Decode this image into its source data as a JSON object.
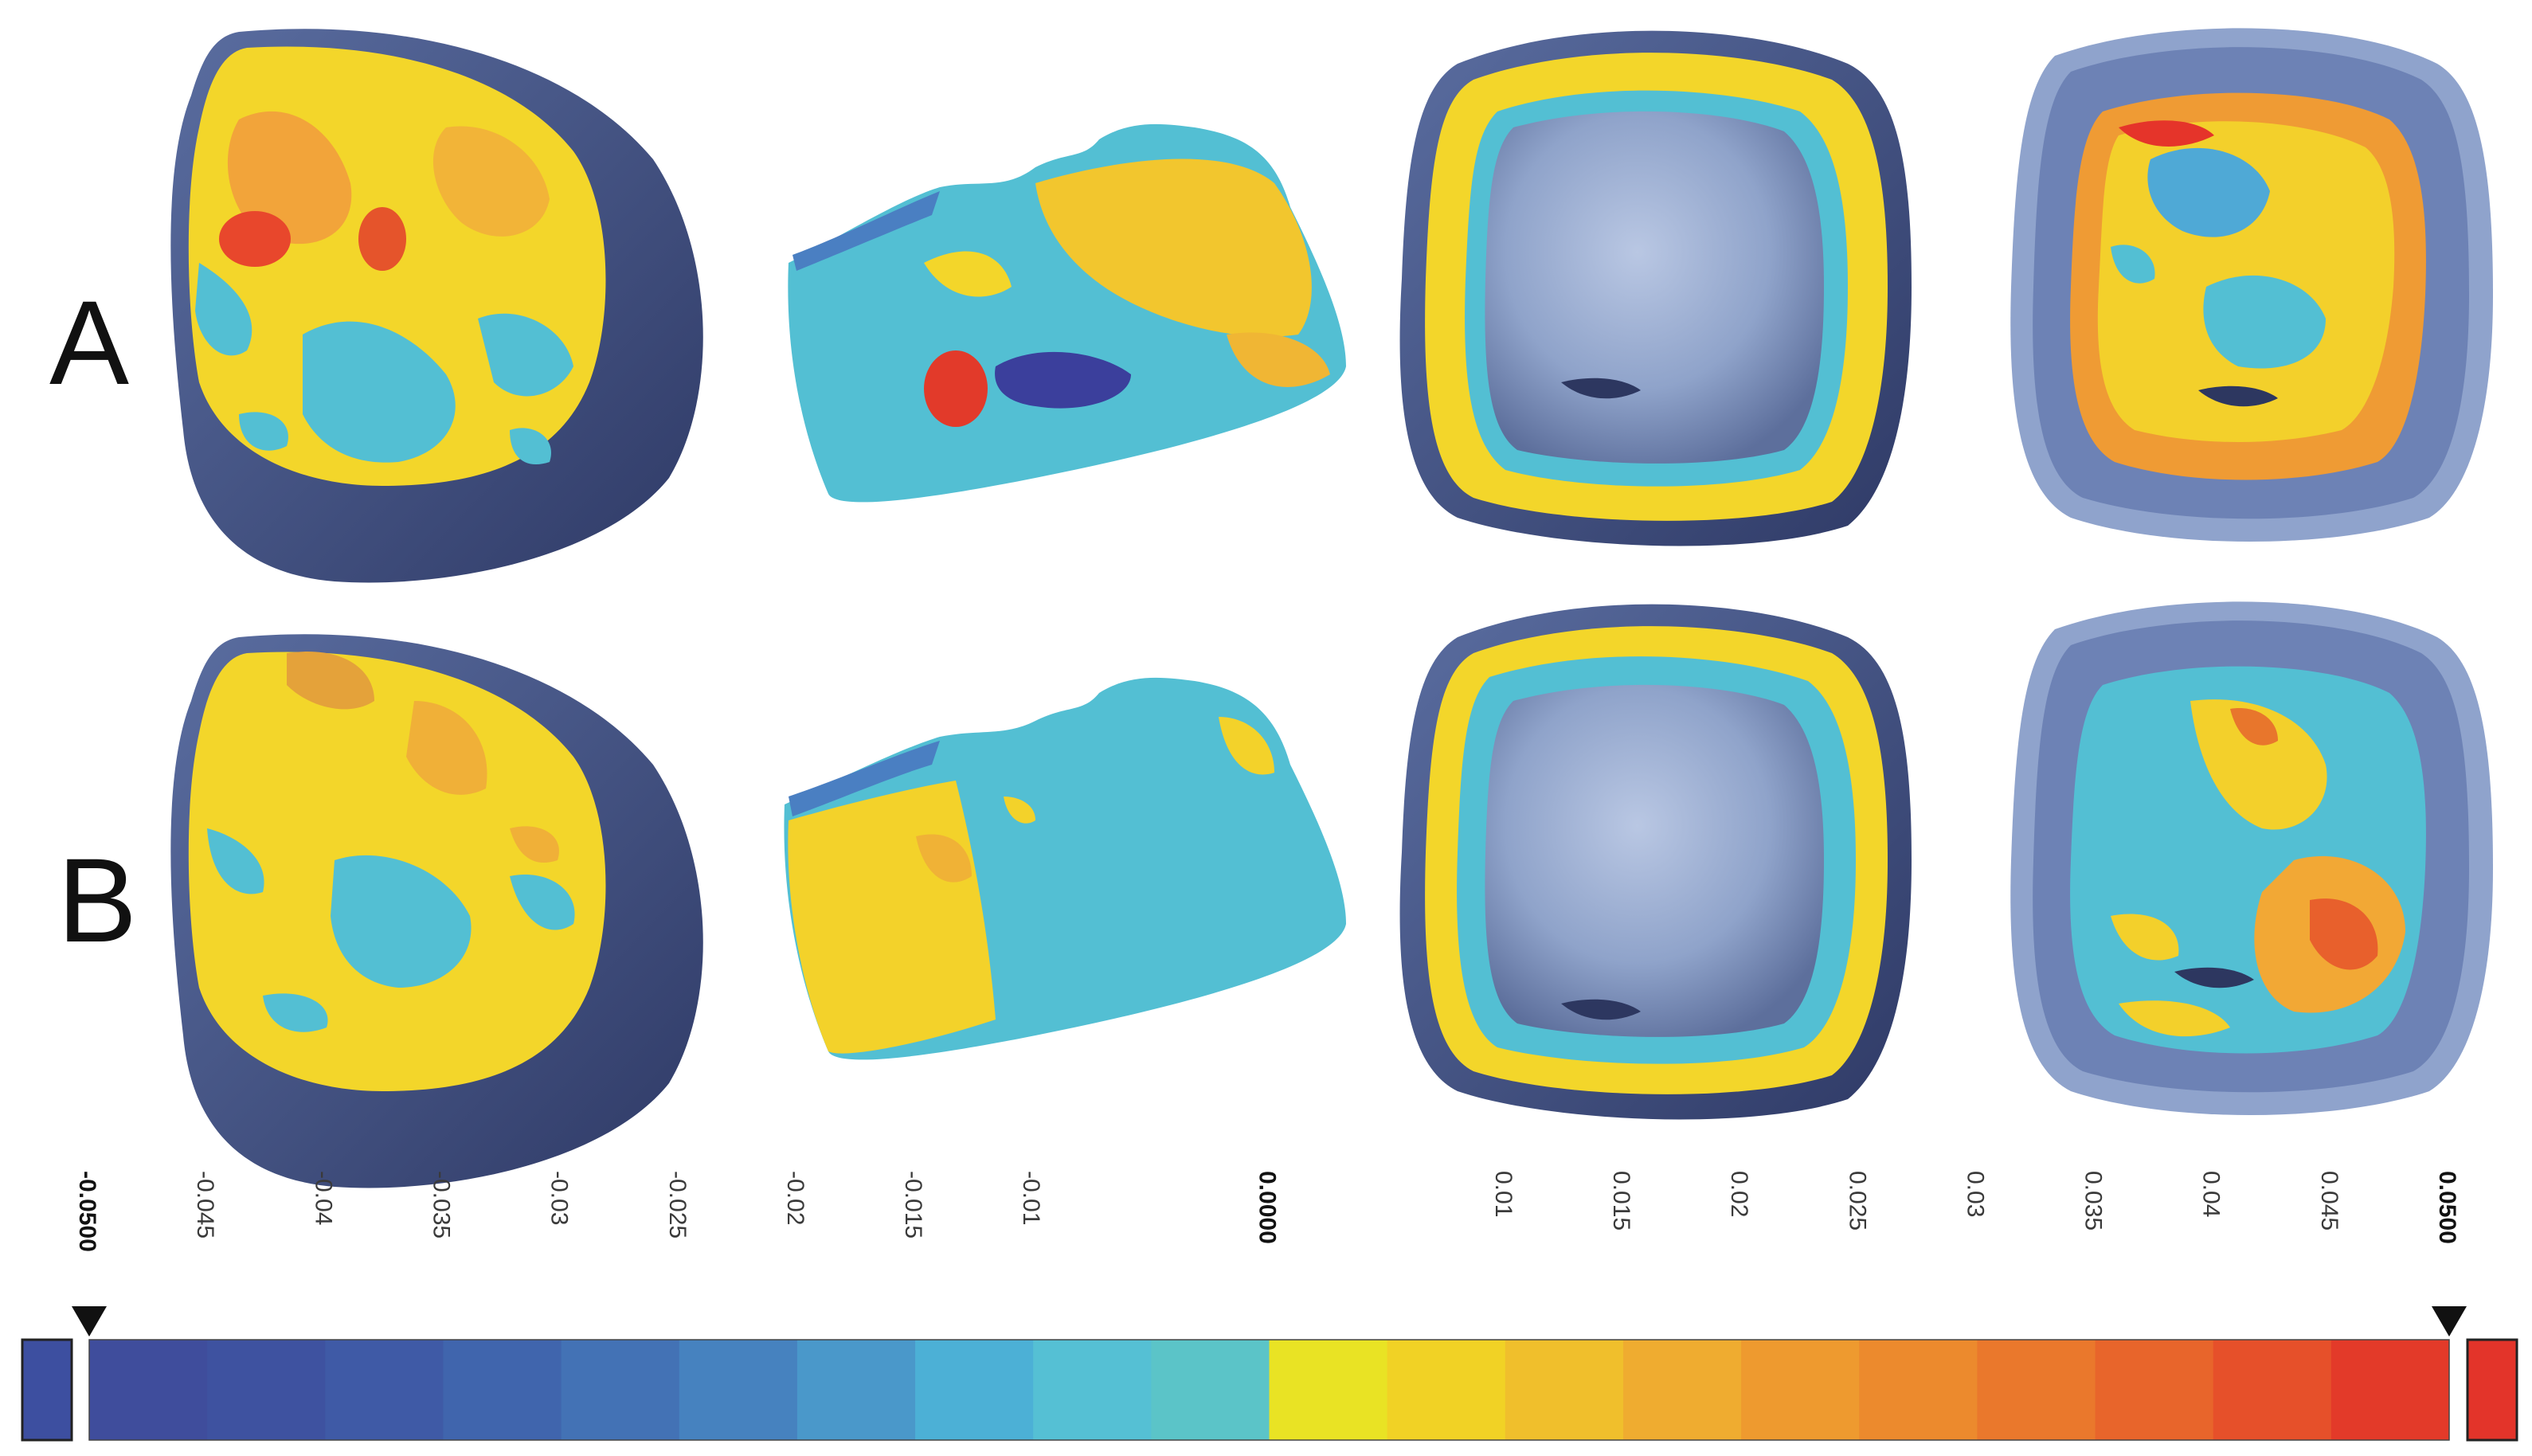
{
  "rows": [
    {
      "id": "A",
      "label": "A"
    },
    {
      "id": "B",
      "label": "B"
    }
  ],
  "views": [
    "occlusal-external",
    "proximal-external",
    "intaglio-margin",
    "intaglio-internal"
  ],
  "colorbar": {
    "min_label": "-0.0500",
    "max_label": "0.0500",
    "zero_label": "0.0000",
    "ticks": [
      "-0.0500",
      "-0.045",
      "-0.04",
      "-0.035",
      "-0.03",
      "-0.025",
      "-0.02",
      "-0.015",
      "-0.01",
      "0.0000",
      "0.01",
      "0.015",
      "0.02",
      "0.025",
      "0.03",
      "0.035",
      "0.04",
      "0.045",
      "0.0500"
    ],
    "tick_values": [
      -0.05,
      -0.045,
      -0.04,
      -0.035,
      -0.03,
      -0.025,
      -0.02,
      -0.015,
      -0.01,
      0,
      0.01,
      0.015,
      0.02,
      0.025,
      0.03,
      0.035,
      0.04,
      0.045,
      0.05
    ],
    "bold_ticks": [
      "-0.0500",
      "0.0000",
      "0.0500"
    ],
    "under_color": "#3d4fa0",
    "over_color": "#e3342a",
    "segments": [
      {
        "from": -0.05,
        "to": -0.045,
        "color": "#3f4d9c"
      },
      {
        "from": -0.045,
        "to": -0.04,
        "color": "#3e52a0"
      },
      {
        "from": -0.04,
        "to": -0.035,
        "color": "#3f5aa6"
      },
      {
        "from": -0.035,
        "to": -0.03,
        "color": "#4065ad"
      },
      {
        "from": -0.03,
        "to": -0.025,
        "color": "#4372b5"
      },
      {
        "from": -0.025,
        "to": -0.02,
        "color": "#4682bf"
      },
      {
        "from": -0.02,
        "to": -0.015,
        "color": "#4a98ca"
      },
      {
        "from": -0.015,
        "to": -0.01,
        "color": "#4cb0d6"
      },
      {
        "from": -0.01,
        "to": -0.005,
        "color": "#55c0d4"
      },
      {
        "from": -0.005,
        "to": 0,
        "color": "#5bc4c8"
      },
      {
        "from": 0,
        "to": 0.005,
        "color": "#e9e324"
      },
      {
        "from": 0.005,
        "to": 0.01,
        "color": "#f1d225"
      },
      {
        "from": 0.01,
        "to": 0.015,
        "color": "#f0bf2c"
      },
      {
        "from": 0.015,
        "to": 0.02,
        "color": "#efac30"
      },
      {
        "from": 0.02,
        "to": 0.025,
        "color": "#ee9a2f"
      },
      {
        "from": 0.025,
        "to": 0.03,
        "color": "#ec8a2d"
      },
      {
        "from": 0.03,
        "to": 0.035,
        "color": "#ea782c"
      },
      {
        "from": 0.035,
        "to": 0.04,
        "color": "#e8652b"
      },
      {
        "from": 0.04,
        "to": 0.045,
        "color": "#e6502a"
      },
      {
        "from": 0.045,
        "to": 0.05,
        "color": "#e33a29"
      }
    ]
  },
  "colors": {
    "crown_body": "#4a5b8e",
    "crown_dark": "#34406d",
    "intaglio_grey": "#8aa0c8",
    "blue_dark": "#3d4fa0",
    "teal": "#4fc3d2",
    "yellow": "#f3de2c",
    "orange": "#f2ad35",
    "red": "#e5332a"
  }
}
